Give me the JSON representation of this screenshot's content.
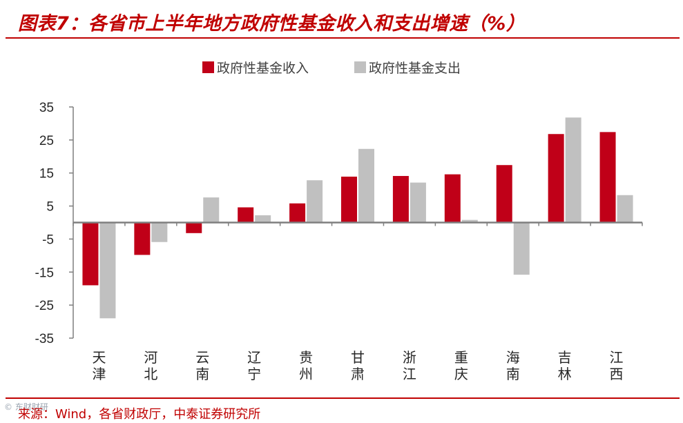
{
  "title": "图表7：各省市上半年地方政府性基金收入和支出增速（%）",
  "source": "来源：Wind，各省财政厅，中泰证券研究所",
  "watermark": "© 东财财研",
  "colors": {
    "accent": "#c00000",
    "income": "#c00018",
    "expense": "#c0c0c0",
    "axis": "#7f7f7f"
  },
  "chart_data": {
    "type": "bar",
    "title": "各省市上半年地方政府性基金收入和支出增速（%）",
    "xlabel": "",
    "ylabel": "",
    "ylim": [
      -35,
      35
    ],
    "yticks": [
      35,
      25,
      15,
      5,
      -5,
      -15,
      -25,
      -35
    ],
    "ytick_labels": [
      "35",
      "25",
      "15",
      "5",
      "-5",
      "-15",
      "-25",
      "-35"
    ],
    "legend_position": "top-center",
    "grid": false,
    "categories": [
      [
        "天",
        "津"
      ],
      [
        "河",
        "北"
      ],
      [
        "云",
        "南"
      ],
      [
        "辽",
        "宁"
      ],
      [
        "贵",
        "州"
      ],
      [
        "甘",
        "肃"
      ],
      [
        "浙",
        "江"
      ],
      [
        "重",
        "庆"
      ],
      [
        "海",
        "南"
      ],
      [
        "吉",
        "林"
      ],
      [
        "江",
        "西"
      ]
    ],
    "series": [
      {
        "name": "政府性基金收入",
        "color": "#c00018",
        "values": [
          -19,
          -9.8,
          -3.2,
          4.6,
          5.8,
          13.9,
          14.1,
          14.6,
          17.4,
          26.8,
          27.4
        ]
      },
      {
        "name": "政府性基金支出",
        "color": "#c0c0c0",
        "values": [
          -29,
          -5.9,
          7.6,
          2.2,
          12.8,
          22.3,
          12.1,
          0.8,
          -15.8,
          31.8,
          8.3
        ]
      }
    ]
  }
}
